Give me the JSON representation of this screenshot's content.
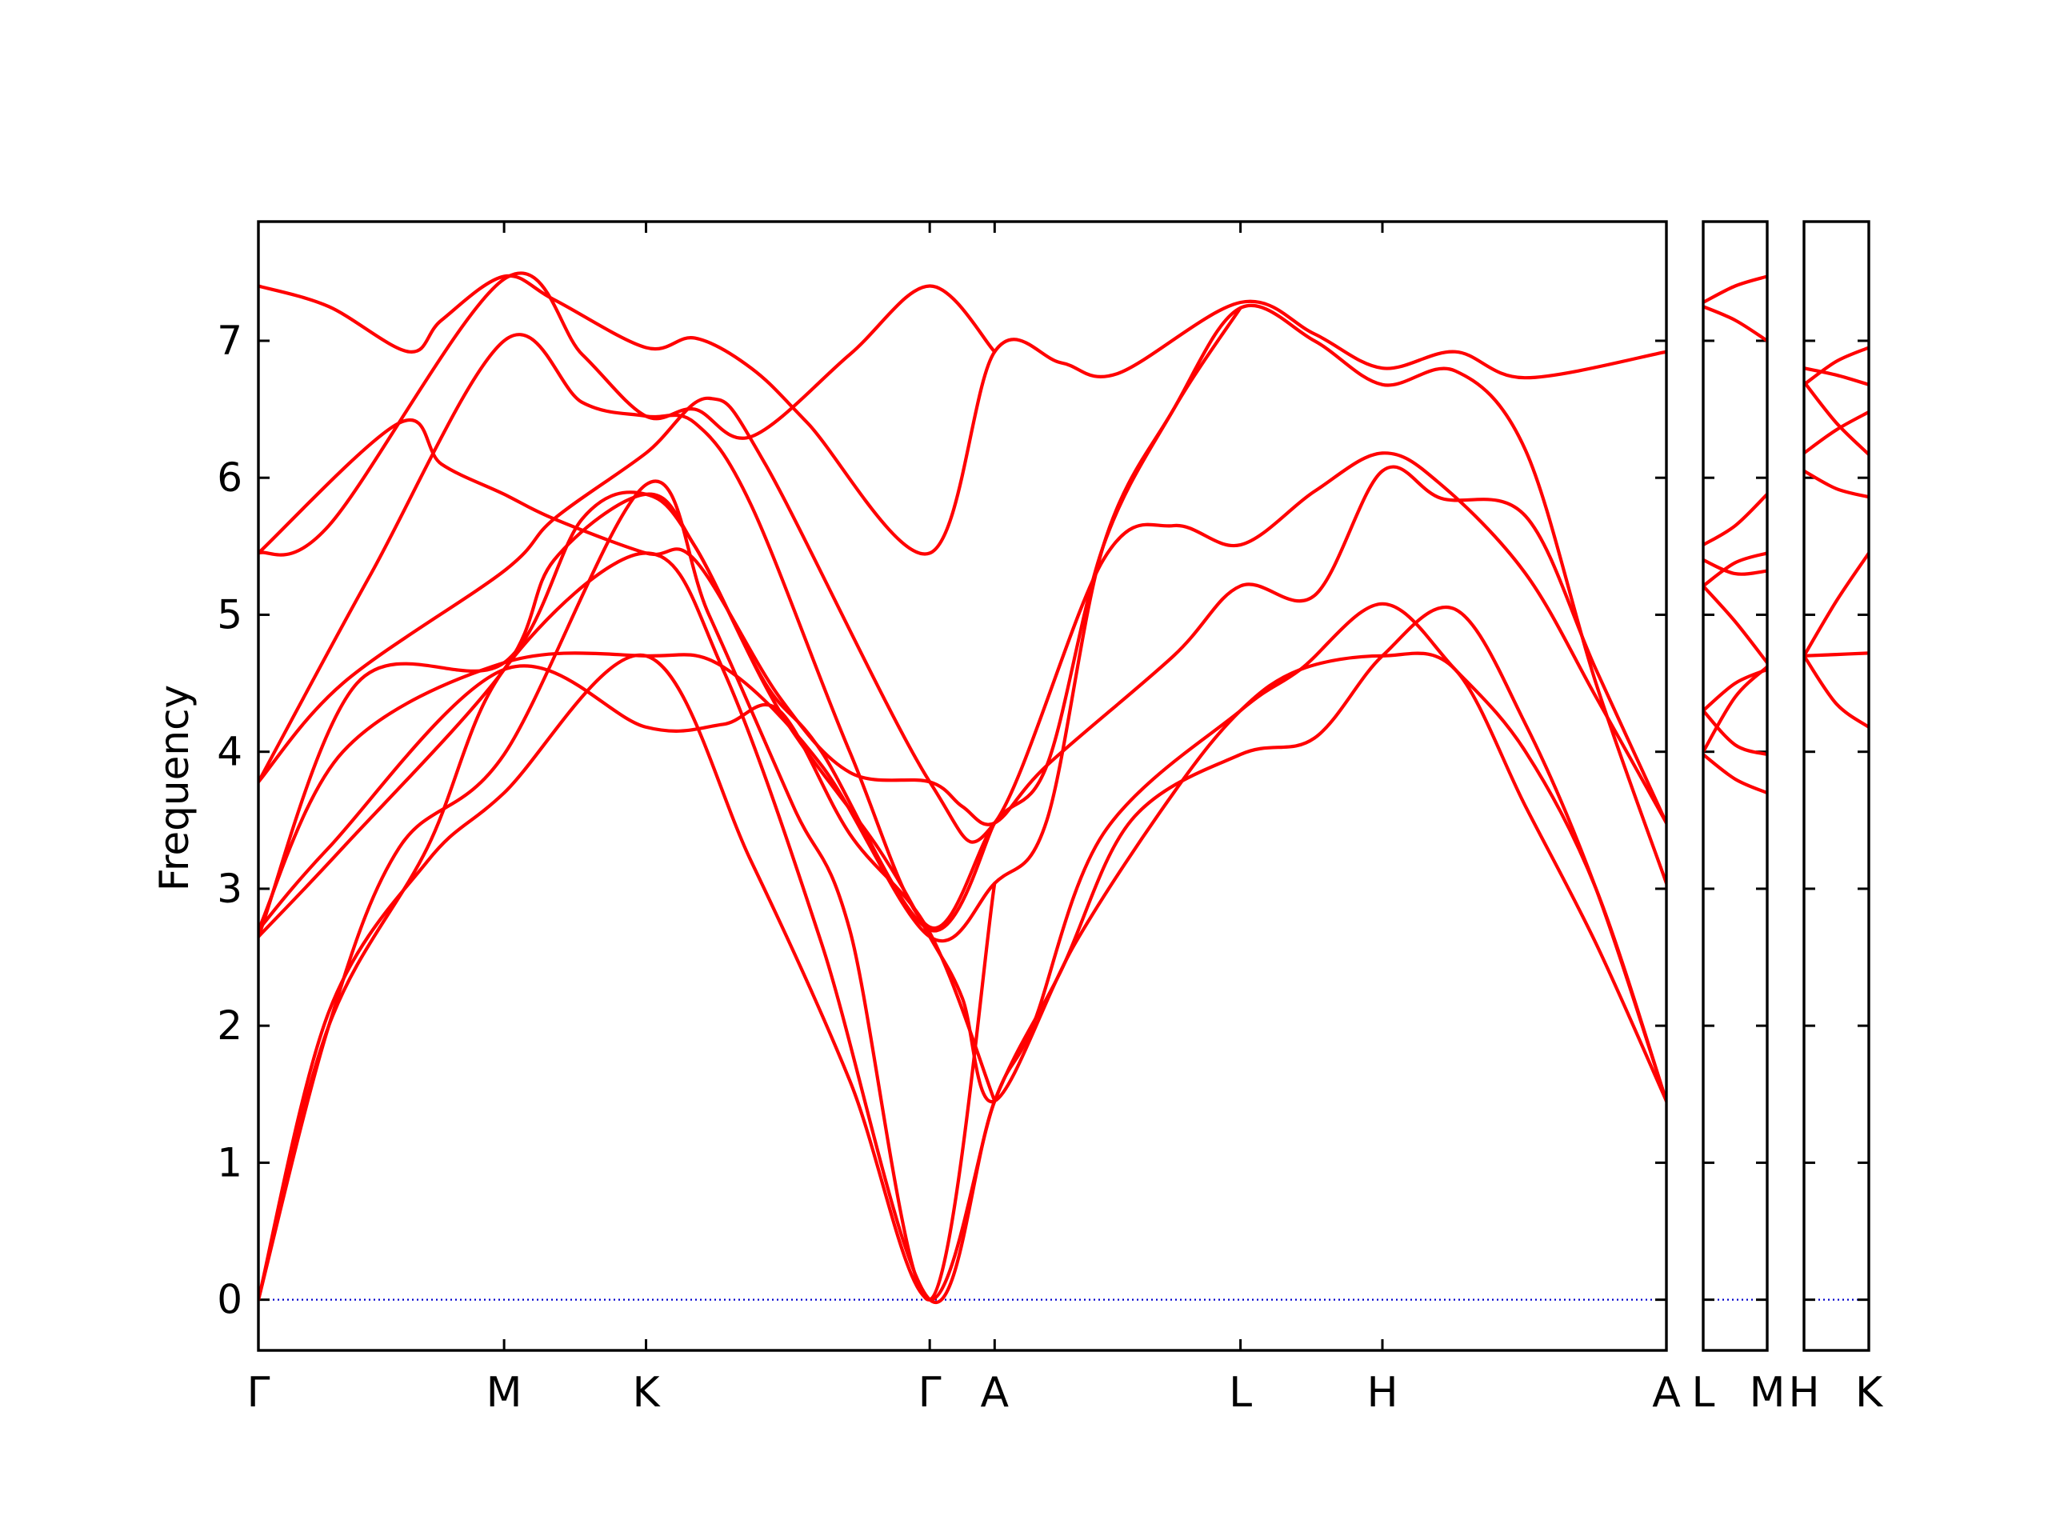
{
  "chart_data": {
    "type": "line",
    "ylabel": "Frequency",
    "ylim": [
      -0.37,
      7.87
    ],
    "yticks": [
      0,
      1,
      2,
      3,
      4,
      5,
      6,
      7
    ],
    "zero_line": true,
    "colors": {
      "bands": "#ff0000",
      "zero_line": "#0000cd",
      "axes": "#000000"
    },
    "panels": [
      {
        "x_range": [
          0,
          1
        ],
        "ticks": [
          {
            "x": 0,
            "label": "Γ"
          },
          {
            "x": 0.1745,
            "label": "M"
          },
          {
            "x": 0.2753,
            "label": "K"
          },
          {
            "x": 0.4768,
            "label": "Γ"
          },
          {
            "x": 0.5229,
            "label": "A"
          },
          {
            "x": 0.6975,
            "label": "L"
          },
          {
            "x": 0.7983,
            "label": "H"
          },
          {
            "x": 1.0,
            "label": "A"
          }
        ],
        "bands": [
          [
            [
              0,
              7.4
            ],
            [
              0.05,
              7.25
            ],
            [
              0.107,
              6.92
            ],
            [
              0.13,
              7.15
            ],
            [
              0.1745,
              7.47
            ],
            [
              0.21,
              7.3
            ],
            [
              0.2753,
              6.95
            ],
            [
              0.31,
              7.02
            ],
            [
              0.35,
              6.8
            ],
            [
              0.39,
              6.4
            ],
            [
              0.4768,
              5.45
            ],
            [
              0.5229,
              6.92
            ],
            [
              0.57,
              6.84
            ],
            [
              0.61,
              6.76
            ],
            [
              0.6975,
              7.28
            ],
            [
              0.75,
              7.05
            ],
            [
              0.7983,
              6.8
            ],
            [
              0.85,
              6.92
            ],
            [
              0.9,
              6.73
            ],
            [
              1.0,
              6.92
            ]
          ],
          [
            [
              0,
              5.45
            ],
            [
              0.05,
              5.65
            ],
            [
              0.1745,
              7.45
            ],
            [
              0.23,
              6.9
            ],
            [
              0.2753,
              6.45
            ],
            [
              0.31,
              6.5
            ],
            [
              0.35,
              6.3
            ],
            [
              0.42,
              6.9
            ],
            [
              0.4768,
              7.4
            ],
            [
              0.5229,
              6.92
            ]
          ],
          [
            [
              0,
              5.45
            ],
            [
              0.1,
              6.4
            ],
            [
              0.13,
              6.1
            ],
            [
              0.1745,
              5.88
            ],
            [
              0.21,
              5.7
            ],
            [
              0.2753,
              5.45
            ],
            [
              0.31,
              5.4
            ],
            [
              0.37,
              4.4
            ],
            [
              0.42,
              3.85
            ],
            [
              0.4768,
              3.78
            ],
            [
              0.5,
              3.6
            ],
            [
              0.5229,
              3.48
            ],
            [
              0.56,
              3.9
            ],
            [
              0.65,
              4.7
            ],
            [
              0.6975,
              5.21
            ],
            [
              0.75,
              5.14
            ],
            [
              0.7983,
              6.05
            ],
            [
              0.84,
              5.85
            ],
            [
              0.9,
              5.72
            ],
            [
              0.95,
              4.6
            ],
            [
              1.0,
              3.48
            ]
          ],
          [
            [
              0,
              3.78
            ],
            [
              0.06,
              4.5
            ],
            [
              0.1745,
              5.32
            ],
            [
              0.21,
              5.7
            ],
            [
              0.2753,
              6.18
            ],
            [
              0.32,
              6.58
            ],
            [
              0.36,
              6.1
            ],
            [
              0.4768,
              3.78
            ],
            [
              0.5229,
              3.48
            ],
            [
              0.6,
              5.4
            ],
            [
              0.65,
              5.65
            ],
            [
              0.6975,
              5.51
            ],
            [
              0.75,
              5.9
            ],
            [
              0.7983,
              6.18
            ],
            [
              0.84,
              5.95
            ],
            [
              0.9,
              5.3
            ],
            [
              0.95,
              4.4
            ],
            [
              1.0,
              3.48
            ]
          ],
          [
            [
              0,
              3.78
            ],
            [
              0.08,
              5.3
            ],
            [
              0.1745,
              7.0
            ],
            [
              0.23,
              6.55
            ],
            [
              0.2753,
              6.45
            ],
            [
              0.31,
              6.4
            ],
            [
              0.35,
              5.8
            ],
            [
              0.42,
              4.0
            ],
            [
              0.4768,
              2.72
            ],
            [
              0.5229,
              3.48
            ],
            [
              0.56,
              3.9
            ],
            [
              0.6,
              5.5
            ],
            [
              0.65,
              6.5
            ],
            [
              0.6975,
              7.24
            ],
            [
              0.75,
              7.0
            ],
            [
              0.7983,
              6.68
            ],
            [
              0.85,
              6.78
            ],
            [
              0.9,
              6.2
            ],
            [
              0.95,
              4.5
            ],
            [
              1.0,
              3.04
            ]
          ],
          [
            [
              0,
              2.7
            ],
            [
              0.06,
              4.0
            ],
            [
              0.1745,
              4.65
            ],
            [
              0.2753,
              4.7
            ],
            [
              0.33,
              4.62
            ],
            [
              0.4,
              3.9
            ],
            [
              0.4768,
              2.65
            ],
            [
              0.5229,
              3.04
            ],
            [
              0.56,
              3.5
            ],
            [
              0.6,
              5.5
            ],
            [
              0.65,
              6.5
            ],
            [
              0.6975,
              7.24
            ]
          ],
          [
            [
              0,
              2.65
            ],
            [
              0.07,
              4.5
            ],
            [
              0.1745,
              4.65
            ],
            [
              0.23,
              5.7
            ],
            [
              0.2753,
              5.88
            ],
            [
              0.31,
              5.5
            ],
            [
              0.37,
              4.3
            ],
            [
              0.44,
              3.3
            ],
            [
              0.4768,
              2.65
            ],
            [
              0.5,
              2.2
            ],
            [
              0.5229,
              1.45
            ],
            [
              0.58,
              2.6
            ],
            [
              0.65,
              3.7
            ],
            [
              0.6975,
              4.3
            ],
            [
              0.74,
              4.6
            ],
            [
              0.7983,
              4.7
            ],
            [
              0.85,
              4.6
            ],
            [
              0.9,
              3.6
            ],
            [
              0.95,
              2.6
            ],
            [
              1.0,
              1.45
            ]
          ],
          [
            [
              0,
              2.7
            ],
            [
              0.05,
              3.3
            ],
            [
              0.1745,
              4.6
            ],
            [
              0.2753,
              4.18
            ],
            [
              0.33,
              4.2
            ],
            [
              0.37,
              4.3
            ],
            [
              0.42,
              3.4
            ],
            [
              0.4768,
              2.68
            ],
            [
              0.5229,
              1.45
            ]
          ],
          [
            [
              0,
              2.65
            ],
            [
              0.06,
              3.3
            ],
            [
              0.1745,
              4.6
            ],
            [
              0.21,
              5.4
            ],
            [
              0.2753,
              5.88
            ],
            [
              0.31,
              5.5
            ],
            [
              0.36,
              4.5
            ],
            [
              0.4,
              4.0
            ],
            [
              0.4768,
              2.7
            ],
            [
              0.5229,
              3.48
            ]
          ],
          [
            [
              0,
              0
            ],
            [
              0.05,
              2.0
            ],
            [
              0.1,
              3.3
            ],
            [
              0.1745,
              3.98
            ],
            [
              0.2753,
              5.95
            ],
            [
              0.32,
              5.0
            ],
            [
              0.38,
              3.6
            ],
            [
              0.42,
              2.7
            ],
            [
              0.4768,
              0
            ],
            [
              0.5229,
              3.04
            ]
          ],
          [
            [
              0,
              0
            ],
            [
              0.05,
              2.1
            ],
            [
              0.12,
              3.2
            ],
            [
              0.1745,
              3.7
            ],
            [
              0.2753,
              4.7
            ],
            [
              0.35,
              3.2
            ],
            [
              0.42,
              1.6
            ],
            [
              0.4768,
              0
            ],
            [
              0.5229,
              1.45
            ],
            [
              0.55,
              2.0
            ],
            [
              0.6,
              3.4
            ],
            [
              0.6975,
              4.3
            ],
            [
              0.74,
              4.6
            ],
            [
              0.7983,
              5.08
            ],
            [
              0.85,
              4.6
            ],
            [
              0.9,
              4.0
            ],
            [
              0.95,
              3.0
            ],
            [
              1.0,
              1.45
            ]
          ],
          [
            [
              0,
              0
            ],
            [
              0.05,
              2.0
            ],
            [
              0.12,
              3.3
            ],
            [
              0.1745,
              4.6
            ],
            [
              0.2753,
              5.45
            ],
            [
              0.33,
              4.6
            ],
            [
              0.4,
              2.6
            ],
            [
              0.4768,
              0
            ],
            [
              0.5229,
              1.45
            ],
            [
              0.57,
              2.4
            ],
            [
              0.62,
              3.5
            ],
            [
              0.6975,
              3.98
            ],
            [
              0.75,
              4.1
            ],
            [
              0.7983,
              4.7
            ],
            [
              0.85,
              5.04
            ],
            [
              0.9,
              4.2
            ],
            [
              0.95,
              3.0
            ],
            [
              1.0,
              1.45
            ]
          ]
        ]
      },
      {
        "x_range": [
          0,
          1
        ],
        "ticks": [
          {
            "x": 0,
            "label": "L"
          },
          {
            "x": 1.0,
            "label": "M"
          }
        ],
        "bands": [
          [
            [
              0,
              7.28
            ],
            [
              0.5,
              7.4
            ],
            [
              1,
              7.47
            ]
          ],
          [
            [
              0,
              7.25
            ],
            [
              0.5,
              7.15
            ],
            [
              1,
              7.0
            ]
          ],
          [
            [
              0,
              5.51
            ],
            [
              0.5,
              5.65
            ],
            [
              1,
              5.88
            ]
          ],
          [
            [
              0,
              5.21
            ],
            [
              0.5,
              5.38
            ],
            [
              1,
              5.45
            ]
          ],
          [
            [
              0,
              5.4
            ],
            [
              0.5,
              5.3
            ],
            [
              1,
              5.32
            ]
          ],
          [
            [
              0,
              5.21
            ],
            [
              0.5,
              4.95
            ],
            [
              1,
              4.65
            ]
          ],
          [
            [
              0,
              4.3
            ],
            [
              0.5,
              4.5
            ],
            [
              1,
              4.6
            ]
          ],
          [
            [
              0,
              4.3
            ],
            [
              0.5,
              4.05
            ],
            [
              1,
              3.98
            ]
          ],
          [
            [
              0,
              3.98
            ],
            [
              0.5,
              3.8
            ],
            [
              1,
              3.7
            ]
          ],
          [
            [
              0,
              4.0
            ],
            [
              0.5,
              4.4
            ],
            [
              1,
              4.62
            ]
          ]
        ]
      },
      {
        "x_range": [
          0,
          1
        ],
        "ticks": [
          {
            "x": 0,
            "label": "H"
          },
          {
            "x": 1.0,
            "label": "K"
          }
        ],
        "bands": [
          [
            [
              0,
              6.8
            ],
            [
              0.5,
              6.75
            ],
            [
              1,
              6.68
            ]
          ],
          [
            [
              0,
              6.68
            ],
            [
              0.5,
              6.85
            ],
            [
              1,
              6.95
            ]
          ],
          [
            [
              0,
              6.7
            ],
            [
              0.5,
              6.4
            ],
            [
              1,
              6.17
            ]
          ],
          [
            [
              0,
              6.18
            ],
            [
              0.5,
              6.35
            ],
            [
              1,
              6.48
            ]
          ],
          [
            [
              0,
              6.05
            ],
            [
              0.5,
              5.92
            ],
            [
              1,
              5.86
            ]
          ],
          [
            [
              0,
              4.7
            ],
            [
              0.5,
              5.1
            ],
            [
              1,
              5.45
            ]
          ],
          [
            [
              0,
              4.7
            ],
            [
              0.5,
              4.71
            ],
            [
              1,
              4.72
            ]
          ],
          [
            [
              0,
              4.7
            ],
            [
              0.5,
              4.35
            ],
            [
              1,
              4.18
            ]
          ]
        ]
      }
    ]
  }
}
